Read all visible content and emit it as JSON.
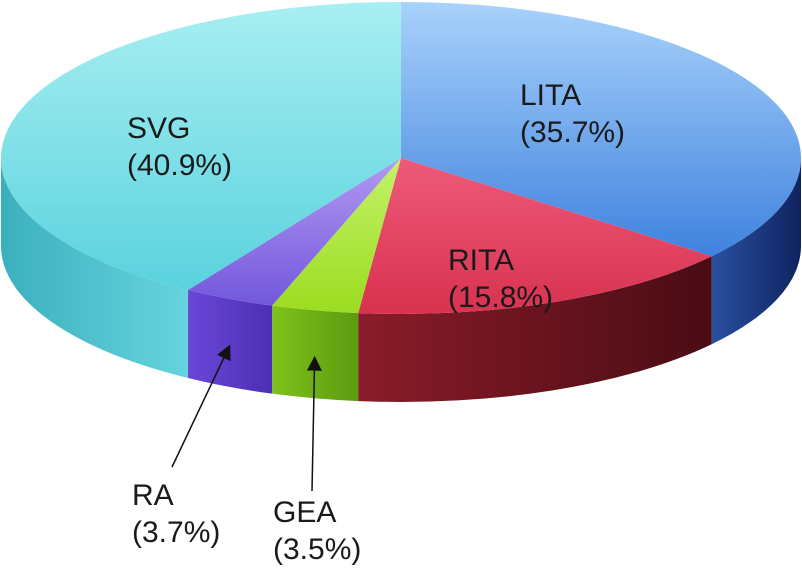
{
  "chart_data": {
    "type": "pie",
    "title": "",
    "slices": [
      {
        "name": "LITA",
        "value": 35.7,
        "percent_label": "(35.7%)",
        "color": "#5b9be6"
      },
      {
        "name": "RITA",
        "value": 15.8,
        "percent_label": "(15.8%)",
        "color": "#e23b5c"
      },
      {
        "name": "GEA",
        "value": 3.5,
        "percent_label": "(3.5%)",
        "color": "#a6e22a"
      },
      {
        "name": "RA",
        "value": 3.7,
        "percent_label": "(3.7%)",
        "color": "#7a5ce0"
      },
      {
        "name": "SVG",
        "value": 40.9,
        "percent_label": "(40.9%)",
        "color": "#62d8e2"
      }
    ]
  }
}
